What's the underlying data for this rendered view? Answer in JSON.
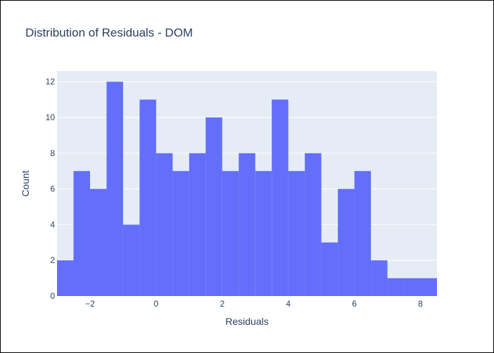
{
  "chart_data": {
    "type": "bar",
    "title": "Distribution of Residuals - DOM",
    "xlabel": "Residuals",
    "ylabel": "Count",
    "bins": [
      {
        "x0": -3.0,
        "x1": -2.5,
        "count": 2
      },
      {
        "x0": -2.5,
        "x1": -2.0,
        "count": 7
      },
      {
        "x0": -2.0,
        "x1": -1.5,
        "count": 6
      },
      {
        "x0": -1.5,
        "x1": -1.0,
        "count": 12
      },
      {
        "x0": -1.0,
        "x1": -0.5,
        "count": 4
      },
      {
        "x0": -0.5,
        "x1": 0.0,
        "count": 11
      },
      {
        "x0": 0.0,
        "x1": 0.5,
        "count": 8
      },
      {
        "x0": 0.5,
        "x1": 1.0,
        "count": 7
      },
      {
        "x0": 1.0,
        "x1": 1.5,
        "count": 8
      },
      {
        "x0": 1.5,
        "x1": 2.0,
        "count": 10
      },
      {
        "x0": 2.0,
        "x1": 2.5,
        "count": 7
      },
      {
        "x0": 2.5,
        "x1": 3.0,
        "count": 8
      },
      {
        "x0": 3.0,
        "x1": 3.5,
        "count": 7
      },
      {
        "x0": 3.5,
        "x1": 4.0,
        "count": 11
      },
      {
        "x0": 4.0,
        "x1": 4.5,
        "count": 7
      },
      {
        "x0": 4.5,
        "x1": 5.0,
        "count": 8
      },
      {
        "x0": 5.0,
        "x1": 5.5,
        "count": 3
      },
      {
        "x0": 5.5,
        "x1": 6.0,
        "count": 6
      },
      {
        "x0": 6.0,
        "x1": 6.5,
        "count": 7
      },
      {
        "x0": 6.5,
        "x1": 7.0,
        "count": 2
      },
      {
        "x0": 7.0,
        "x1": 7.5,
        "count": 1
      },
      {
        "x0": 7.5,
        "x1": 8.0,
        "count": 1
      },
      {
        "x0": 8.0,
        "x1": 8.5,
        "count": 1
      }
    ],
    "xlim": [
      -3.0,
      8.5
    ],
    "ylim": [
      0,
      12.6
    ],
    "xticks": [
      -2,
      0,
      2,
      4,
      6,
      8
    ],
    "xtick_labels": [
      "−2",
      "0",
      "2",
      "4",
      "6",
      "8"
    ],
    "yticks": [
      0,
      2,
      4,
      6,
      8,
      10,
      12
    ],
    "ytick_labels": [
      "0",
      "2",
      "4",
      "6",
      "8",
      "10",
      "12"
    ],
    "grid": true,
    "legend": "none",
    "colors": {
      "bar": "#636efa",
      "plot_bg": "#e5ecf6",
      "grid": "#ffffff",
      "text": "#2a3f5f"
    }
  }
}
